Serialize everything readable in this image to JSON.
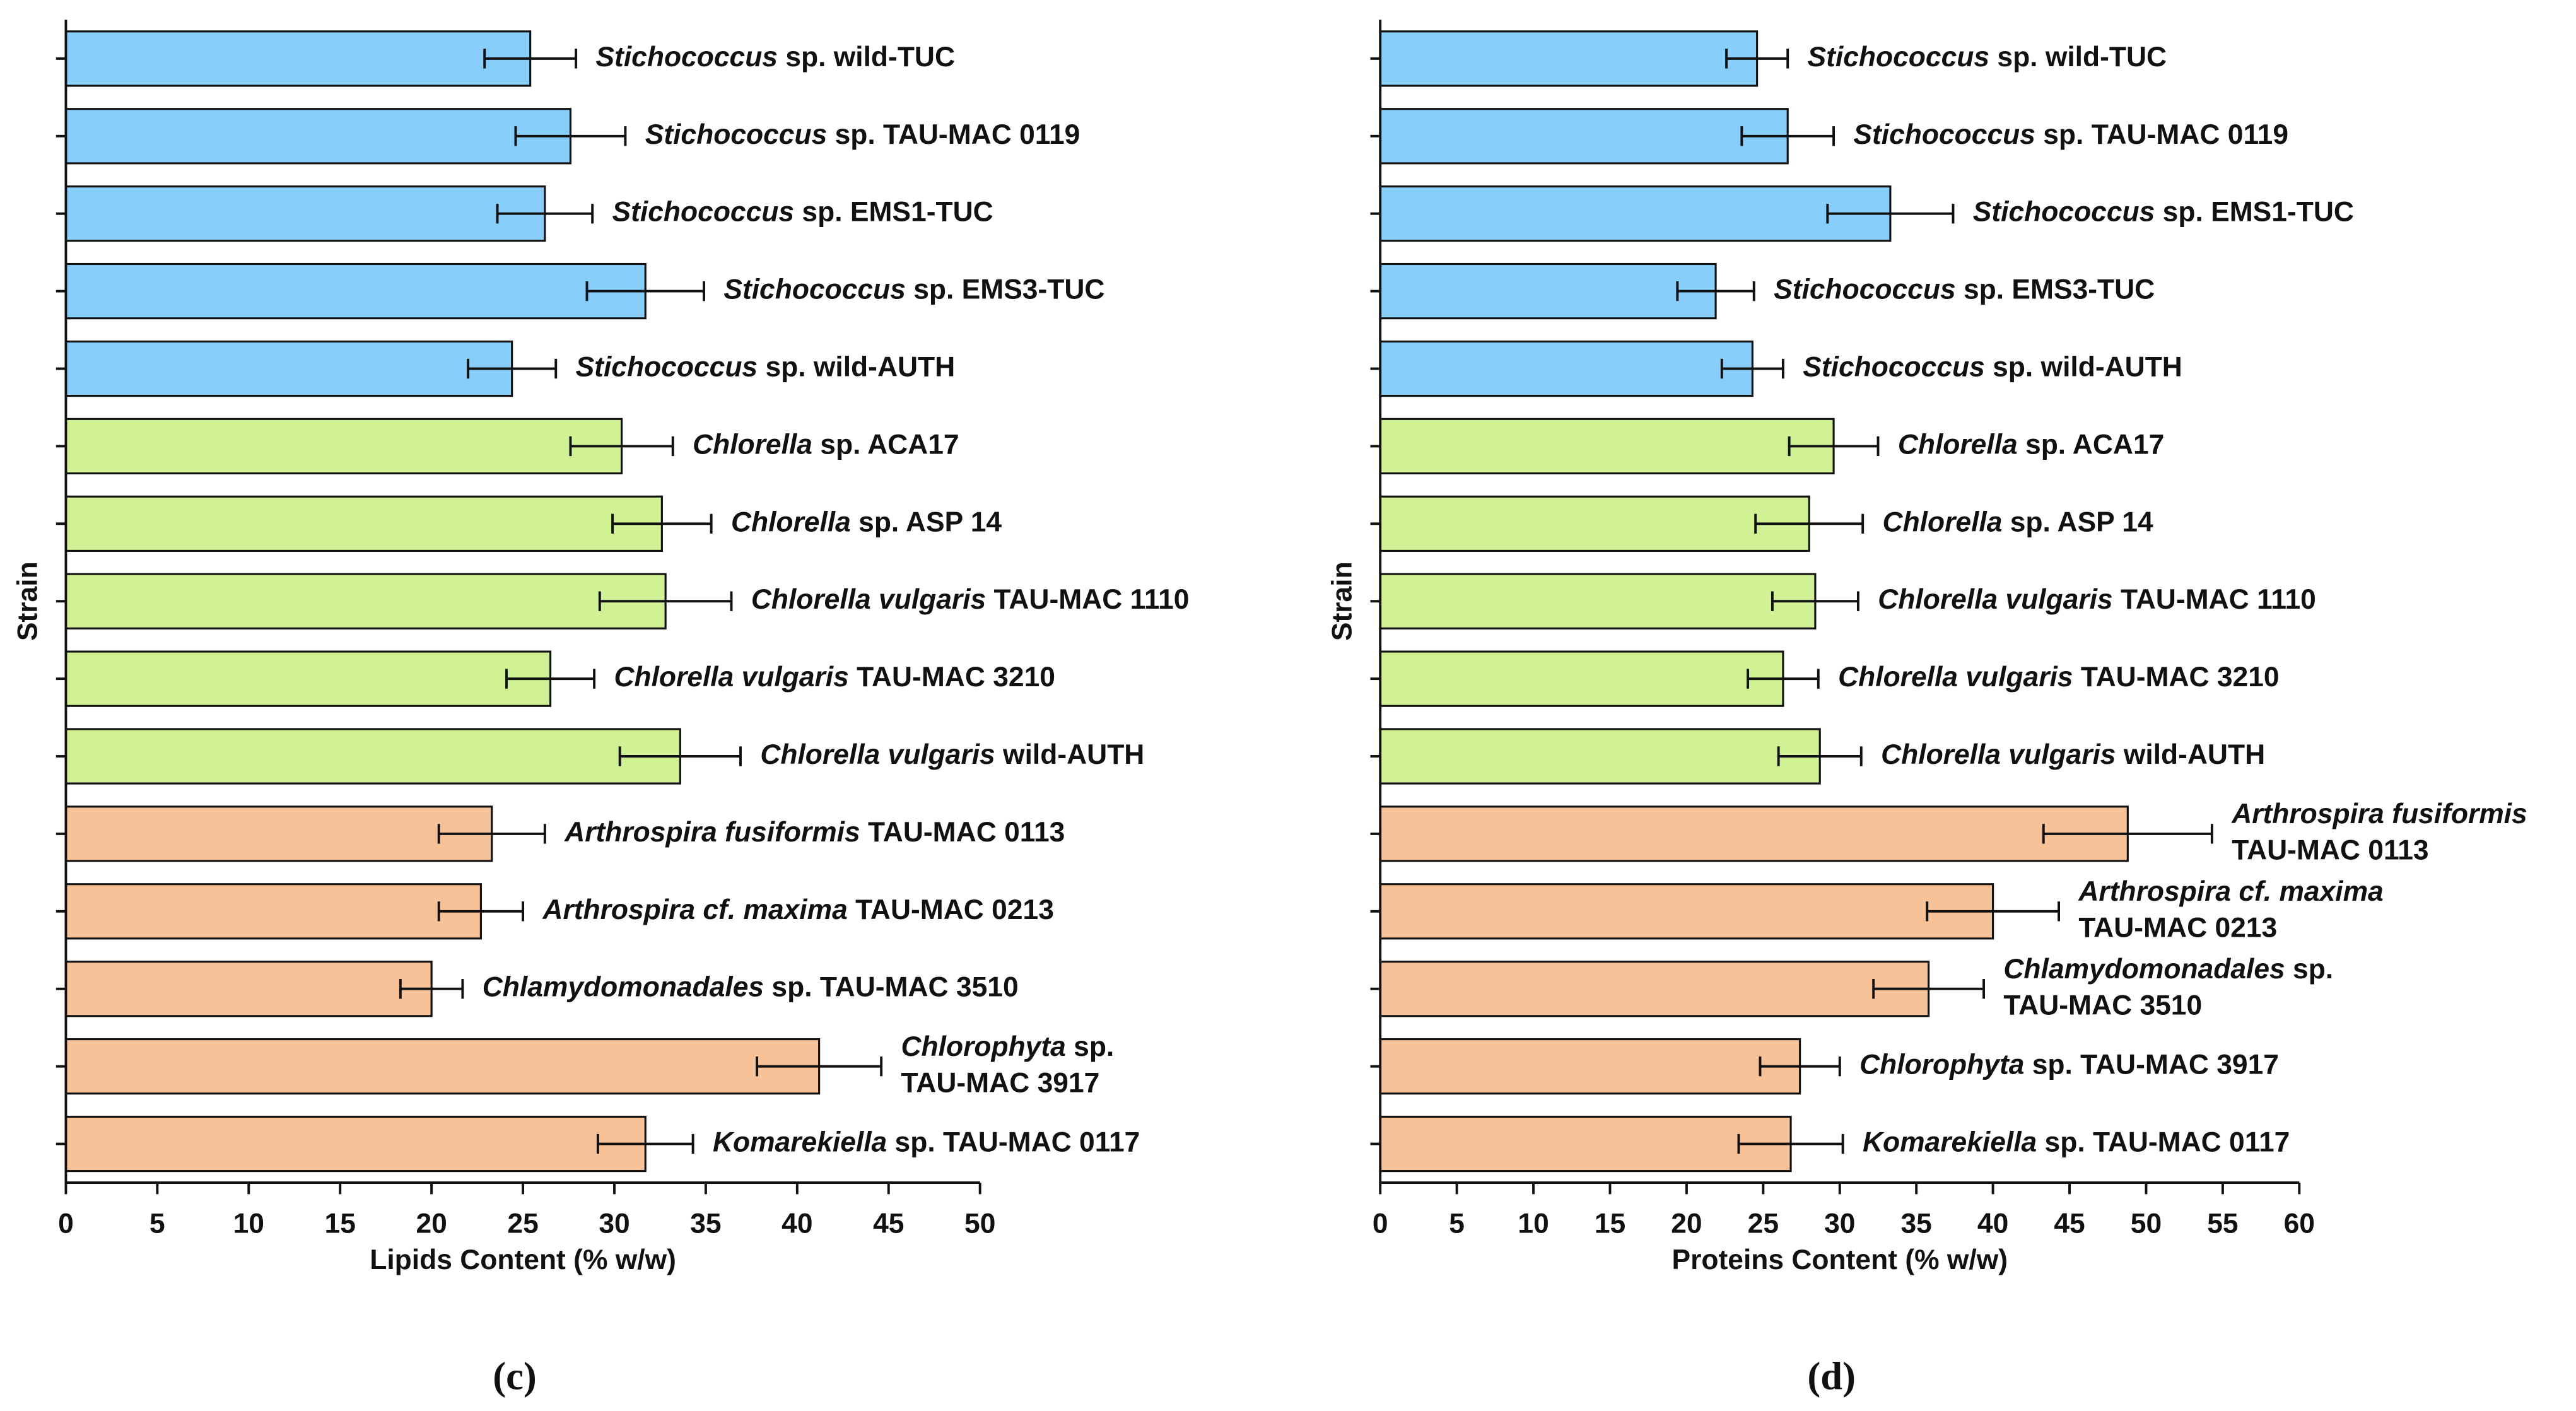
{
  "chart_data": [
    {
      "type": "bar",
      "orientation": "horizontal",
      "ylabel": "Strain",
      "xlabel": "Lipids Content (% w/w)",
      "caption": "(c)",
      "categories": [
        {
          "italic": "Stichococcus",
          "regular": " sp. wild-TUC"
        },
        {
          "italic": "Stichococcus",
          "regular": " sp. TAU-MAC 0119"
        },
        {
          "italic": "Stichococcus",
          "regular": " sp. EMS1-TUC"
        },
        {
          "italic": "Stichococcus",
          "regular": " sp. EMS3-TUC"
        },
        {
          "italic": "Stichococcus",
          "regular": " sp. wild-AUTH"
        },
        {
          "italic": "Chlorella",
          "regular": " sp. ACA17"
        },
        {
          "italic": "Chlorella",
          "regular": " sp. ASP 14"
        },
        {
          "italic": "Chlorella vulgaris",
          "regular": " TAU-MAC 1110"
        },
        {
          "italic": "Chlorella vulgaris",
          "regular": " TAU-MAC 3210"
        },
        {
          "italic": "Chlorella vulgaris",
          "regular": " wild-AUTH"
        },
        {
          "italic": "Arthrospira fusiformis",
          "regular": " TAU-MAC 0113"
        },
        {
          "italic": "Arthrospira cf. maxima",
          "regular": " TAU-MAC 0213"
        },
        {
          "italic": "Chlamydomonadales",
          "regular": " sp. TAU-MAC 3510"
        },
        {
          "italic": "Chlorophyta",
          "regular": " sp.\nTAU-MAC 3917"
        },
        {
          "italic": "Komarekiella",
          "regular": " sp. TAU-MAC 0117"
        }
      ],
      "values": [
        25.4,
        27.6,
        26.2,
        31.7,
        24.4,
        30.4,
        32.6,
        32.8,
        26.5,
        33.6,
        23.3,
        22.7,
        20.0,
        41.2,
        31.7
      ],
      "errors": [
        2.5,
        3.0,
        2.6,
        3.2,
        2.4,
        2.8,
        2.7,
        3.6,
        2.4,
        3.3,
        2.9,
        2.3,
        1.7,
        3.4,
        2.6
      ],
      "colors": [
        "#87cefa",
        "#87cefa",
        "#87cefa",
        "#87cefa",
        "#87cefa",
        "#d0f295",
        "#d0f295",
        "#d0f295",
        "#d0f295",
        "#d0f295",
        "#f7c298",
        "#f7c298",
        "#f7c298",
        "#f7c298",
        "#f7c298"
      ],
      "xlim": [
        0,
        50
      ],
      "xticks": [
        0,
        5,
        10,
        15,
        20,
        25,
        30,
        35,
        40,
        45,
        50
      ]
    },
    {
      "type": "bar",
      "orientation": "horizontal",
      "ylabel": "Strain",
      "xlabel": "Proteins Content (% w/w)",
      "caption": "(d)",
      "categories": [
        {
          "italic": "Stichococcus",
          "regular": " sp. wild-TUC"
        },
        {
          "italic": "Stichococcus",
          "regular": " sp. TAU-MAC 0119"
        },
        {
          "italic": "Stichococcus",
          "regular": " sp. EMS1-TUC"
        },
        {
          "italic": "Stichococcus",
          "regular": " sp. EMS3-TUC"
        },
        {
          "italic": "Stichococcus",
          "regular": " sp. wild-AUTH"
        },
        {
          "italic": "Chlorella",
          "regular": " sp. ACA17"
        },
        {
          "italic": "Chlorella",
          "regular": " sp. ASP 14"
        },
        {
          "italic": "Chlorella vulgaris",
          "regular": " TAU-MAC 1110"
        },
        {
          "italic": "Chlorella vulgaris",
          "regular": " TAU-MAC 3210"
        },
        {
          "italic": "Chlorella vulgaris",
          "regular": " wild-AUTH"
        },
        {
          "italic": "Arthrospira fusiformis",
          "regular": "\nTAU-MAC 0113"
        },
        {
          "italic": "Arthrospira cf. maxima",
          "regular": "\nTAU-MAC 0213"
        },
        {
          "italic": "Chlamydomonadales",
          "regular": " sp.\nTAU-MAC 3510"
        },
        {
          "italic": "Chlorophyta",
          "regular": " sp. TAU-MAC 3917"
        },
        {
          "italic": "Komarekiella",
          "regular": " sp. TAU-MAC 0117"
        }
      ],
      "values": [
        24.6,
        26.6,
        33.3,
        21.9,
        24.3,
        29.6,
        28.0,
        28.4,
        26.3,
        28.7,
        48.8,
        40.0,
        35.8,
        27.4,
        26.8
      ],
      "errors": [
        2.0,
        3.0,
        4.1,
        2.5,
        2.0,
        2.9,
        3.5,
        2.8,
        2.3,
        2.7,
        5.5,
        4.3,
        3.6,
        2.6,
        3.4
      ],
      "colors": [
        "#87cefa",
        "#87cefa",
        "#87cefa",
        "#87cefa",
        "#87cefa",
        "#d0f295",
        "#d0f295",
        "#d0f295",
        "#d0f295",
        "#d0f295",
        "#f7c298",
        "#f7c298",
        "#f7c298",
        "#f7c298",
        "#f7c298"
      ],
      "xlim": [
        0,
        60
      ],
      "xticks": [
        0,
        5,
        10,
        15,
        20,
        25,
        30,
        35,
        40,
        45,
        50,
        55,
        60
      ]
    }
  ]
}
